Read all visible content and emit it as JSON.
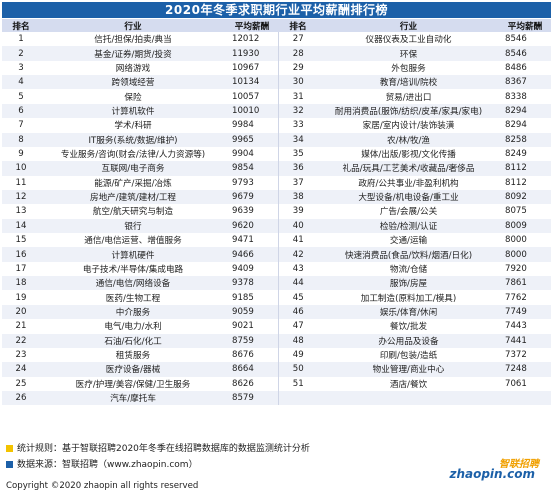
{
  "title": "2020年冬季求职期行业平均薪酬排行榜",
  "headers": {
    "rank": "排名",
    "industry": "行业",
    "salary": "平均薪酬"
  },
  "left_rows": [
    {
      "rank": "1",
      "industry": "信托/担保/拍卖/典当",
      "salary": "12012"
    },
    {
      "rank": "2",
      "industry": "基金/证券/期货/投资",
      "salary": "11930"
    },
    {
      "rank": "3",
      "industry": "网络游戏",
      "salary": "10967"
    },
    {
      "rank": "4",
      "industry": "跨领域经营",
      "salary": "10134"
    },
    {
      "rank": "5",
      "industry": "保险",
      "salary": "10057"
    },
    {
      "rank": "6",
      "industry": "计算机软件",
      "salary": "10010"
    },
    {
      "rank": "7",
      "industry": "学术/科研",
      "salary": "9984"
    },
    {
      "rank": "8",
      "industry": "IT服务(系统/数据/维护)",
      "salary": "9965"
    },
    {
      "rank": "9",
      "industry": "专业服务/咨询(财会/法律/人力资源等)",
      "salary": "9904"
    },
    {
      "rank": "10",
      "industry": "互联网/电子商务",
      "salary": "9854"
    },
    {
      "rank": "11",
      "industry": "能源/矿产/采掘/冶炼",
      "salary": "9793"
    },
    {
      "rank": "12",
      "industry": "房地产/建筑/建材/工程",
      "salary": "9679"
    },
    {
      "rank": "13",
      "industry": "航空/航天研究与制造",
      "salary": "9639"
    },
    {
      "rank": "14",
      "industry": "银行",
      "salary": "9620"
    },
    {
      "rank": "15",
      "industry": "通信/电信运营、增值服务",
      "salary": "9471"
    },
    {
      "rank": "16",
      "industry": "计算机硬件",
      "salary": "9466"
    },
    {
      "rank": "17",
      "industry": "电子技术/半导体/集成电路",
      "salary": "9409"
    },
    {
      "rank": "18",
      "industry": "通信/电信/网络设备",
      "salary": "9378"
    },
    {
      "rank": "19",
      "industry": "医药/生物工程",
      "salary": "9185"
    },
    {
      "rank": "20",
      "industry": "中介服务",
      "salary": "9059"
    },
    {
      "rank": "21",
      "industry": "电气/电力/水利",
      "salary": "9021"
    },
    {
      "rank": "22",
      "industry": "石油/石化/化工",
      "salary": "8759"
    },
    {
      "rank": "23",
      "industry": "租赁服务",
      "salary": "8676"
    },
    {
      "rank": "24",
      "industry": "医疗设备/器械",
      "salary": "8664"
    },
    {
      "rank": "25",
      "industry": "医疗/护理/美容/保健/卫生服务",
      "salary": "8626"
    },
    {
      "rank": "26",
      "industry": "汽车/摩托车",
      "salary": "8579"
    }
  ],
  "right_rows": [
    {
      "rank": "27",
      "industry": "仪器仪表及工业自动化",
      "salary": "8546"
    },
    {
      "rank": "28",
      "industry": "环保",
      "salary": "8546"
    },
    {
      "rank": "29",
      "industry": "外包服务",
      "salary": "8486"
    },
    {
      "rank": "30",
      "industry": "教育/培训/院校",
      "salary": "8367"
    },
    {
      "rank": "31",
      "industry": "贸易/进出口",
      "salary": "8338"
    },
    {
      "rank": "32",
      "industry": "耐用消费品(服饰/纺织/皮革/家具/家电)",
      "salary": "8294"
    },
    {
      "rank": "33",
      "industry": "家居/室内设计/装饰装潢",
      "salary": "8294"
    },
    {
      "rank": "34",
      "industry": "农/林/牧/渔",
      "salary": "8258"
    },
    {
      "rank": "35",
      "industry": "媒体/出版/影视/文化传播",
      "salary": "8249"
    },
    {
      "rank": "36",
      "industry": "礼品/玩具/工艺美术/收藏品/奢侈品",
      "salary": "8112"
    },
    {
      "rank": "37",
      "industry": "政府/公共事业/非盈利机构",
      "salary": "8112"
    },
    {
      "rank": "38",
      "industry": "大型设备/机电设备/重工业",
      "salary": "8092"
    },
    {
      "rank": "39",
      "industry": "广告/会展/公关",
      "salary": "8075"
    },
    {
      "rank": "40",
      "industry": "检验/检测/认证",
      "salary": "8009"
    },
    {
      "rank": "41",
      "industry": "交通/运输",
      "salary": "8000"
    },
    {
      "rank": "42",
      "industry": "快速消费品(食品/饮料/烟酒/日化)",
      "salary": "8000"
    },
    {
      "rank": "43",
      "industry": "物流/仓储",
      "salary": "7920"
    },
    {
      "rank": "44",
      "industry": "服饰/房屋",
      "salary": "7861"
    },
    {
      "rank": "45",
      "industry": "加工制造(原料加工/模具)",
      "salary": "7762"
    },
    {
      "rank": "46",
      "industry": "娱乐/体育/休闲",
      "salary": "7749"
    },
    {
      "rank": "47",
      "industry": "餐饮/批发",
      "salary": "7443"
    },
    {
      "rank": "48",
      "industry": "办公用品及设备",
      "salary": "7441"
    },
    {
      "rank": "49",
      "industry": "印刷/包装/造纸",
      "salary": "7372"
    },
    {
      "rank": "50",
      "industry": "物业管理/商业中心",
      "salary": "7248"
    },
    {
      "rank": "51",
      "industry": "酒店/餐饮",
      "salary": "7061"
    }
  ],
  "footer": {
    "note1": "统计规则：基于智联招聘2020年冬季在线招聘数据库的数据监测统计分析",
    "note2": "数据来源：智联招聘（www.zhaopin.com）",
    "copyright": "Copyright ©2020 zhaopin all rights reserved",
    "logo_cn": "智联招聘",
    "logo_en": "zhaopin.com"
  }
}
